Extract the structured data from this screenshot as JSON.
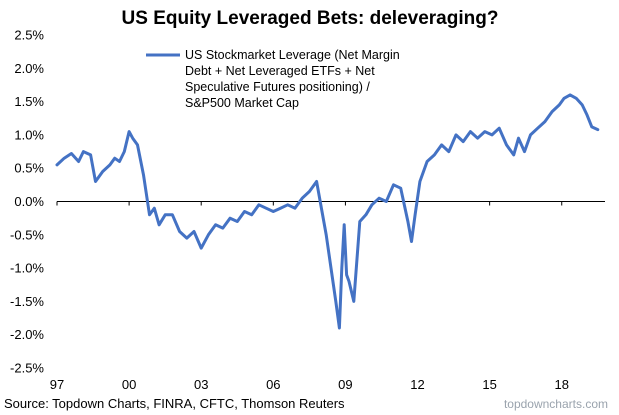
{
  "chart_data": {
    "type": "line",
    "title": "US Equity Leveraged Bets: deleveraging?",
    "xlabel": "",
    "ylabel": "",
    "x_tick_labels": [
      "97",
      "00",
      "03",
      "06",
      "09",
      "12",
      "15",
      "18"
    ],
    "x_tick_values": [
      1997,
      2000,
      2003,
      2006,
      2009,
      2012,
      2015,
      2018
    ],
    "xlim": [
      1997,
      2019.8
    ],
    "y_tick_labels": [
      "2.5%",
      "2.0%",
      "1.5%",
      "1.0%",
      "0.5%",
      "0.0%",
      "-0.5%",
      "-1.0%",
      "-1.5%",
      "-2.0%",
      "-2.5%"
    ],
    "y_tick_values": [
      2.5,
      2.0,
      1.5,
      1.0,
      0.5,
      0.0,
      -0.5,
      -1.0,
      -1.5,
      -2.0,
      -2.5
    ],
    "ylim": [
      -2.5,
      2.5
    ],
    "grid": false,
    "legend_position": "top",
    "series": [
      {
        "name": "US Stockmarket Leverage (Net Margin Debt + Net Leveraged ETFs + Net Speculative Futures positioning) / S&P500 Market Cap",
        "color": "#4472c4",
        "x": [
          1997.0,
          1997.3,
          1997.6,
          1997.9,
          1998.1,
          1998.4,
          1998.6,
          1998.9,
          1999.2,
          1999.4,
          1999.6,
          1999.8,
          2000.0,
          2000.15,
          2000.35,
          2000.6,
          2000.85,
          2001.05,
          2001.25,
          2001.5,
          2001.8,
          2002.1,
          2002.4,
          2002.7,
          2003.0,
          2003.3,
          2003.6,
          2003.9,
          2004.2,
          2004.5,
          2004.8,
          2005.1,
          2005.4,
          2005.7,
          2006.0,
          2006.3,
          2006.6,
          2006.9,
          2007.2,
          2007.5,
          2007.8,
          2008.0,
          2008.2,
          2008.4,
          2008.6,
          2008.75,
          2008.85,
          2008.95,
          2009.05,
          2009.15,
          2009.35,
          2009.6,
          2009.85,
          2010.1,
          2010.4,
          2010.7,
          2011.0,
          2011.3,
          2011.6,
          2011.75,
          2011.9,
          2012.1,
          2012.4,
          2012.7,
          2013.0,
          2013.3,
          2013.6,
          2013.9,
          2014.2,
          2014.5,
          2014.8,
          2015.1,
          2015.4,
          2015.7,
          2016.0,
          2016.2,
          2016.45,
          2016.7,
          2017.0,
          2017.3,
          2017.6,
          2017.9,
          2018.1,
          2018.35,
          2018.6,
          2018.85,
          2019.05,
          2019.25,
          2019.5
        ],
        "y": [
          0.55,
          0.65,
          0.72,
          0.6,
          0.75,
          0.7,
          0.3,
          0.45,
          0.55,
          0.65,
          0.6,
          0.75,
          1.05,
          0.95,
          0.85,
          0.4,
          -0.2,
          -0.1,
          -0.35,
          -0.2,
          -0.2,
          -0.45,
          -0.55,
          -0.45,
          -0.7,
          -0.5,
          -0.35,
          -0.4,
          -0.25,
          -0.3,
          -0.15,
          -0.2,
          -0.05,
          -0.1,
          -0.15,
          -0.1,
          -0.05,
          -0.1,
          0.05,
          0.15,
          0.3,
          -0.1,
          -0.5,
          -1.0,
          -1.5,
          -1.9,
          -1.0,
          -0.35,
          -1.1,
          -1.2,
          -1.5,
          -0.3,
          -0.2,
          -0.05,
          0.05,
          0.0,
          0.25,
          0.2,
          -0.3,
          -0.6,
          -0.2,
          0.3,
          0.6,
          0.7,
          0.85,
          0.75,
          1.0,
          0.9,
          1.05,
          0.95,
          1.05,
          1.0,
          1.1,
          0.85,
          0.7,
          0.95,
          0.75,
          1.0,
          1.1,
          1.2,
          1.35,
          1.45,
          1.55,
          1.6,
          1.55,
          1.45,
          1.3,
          1.12,
          1.08
        ]
      }
    ],
    "legend_lines": [
      "US Stockmarket Leverage (Net Margin",
      "Debt + Net Leveraged ETFs + Net",
      "Speculative Futures positioning) /",
      "S&P500 Market Cap"
    ]
  },
  "footer": {
    "source": "Source: Topdown Charts, FINRA, CFTC, Thomson Reuters",
    "watermark": "topdowncharts.com"
  }
}
